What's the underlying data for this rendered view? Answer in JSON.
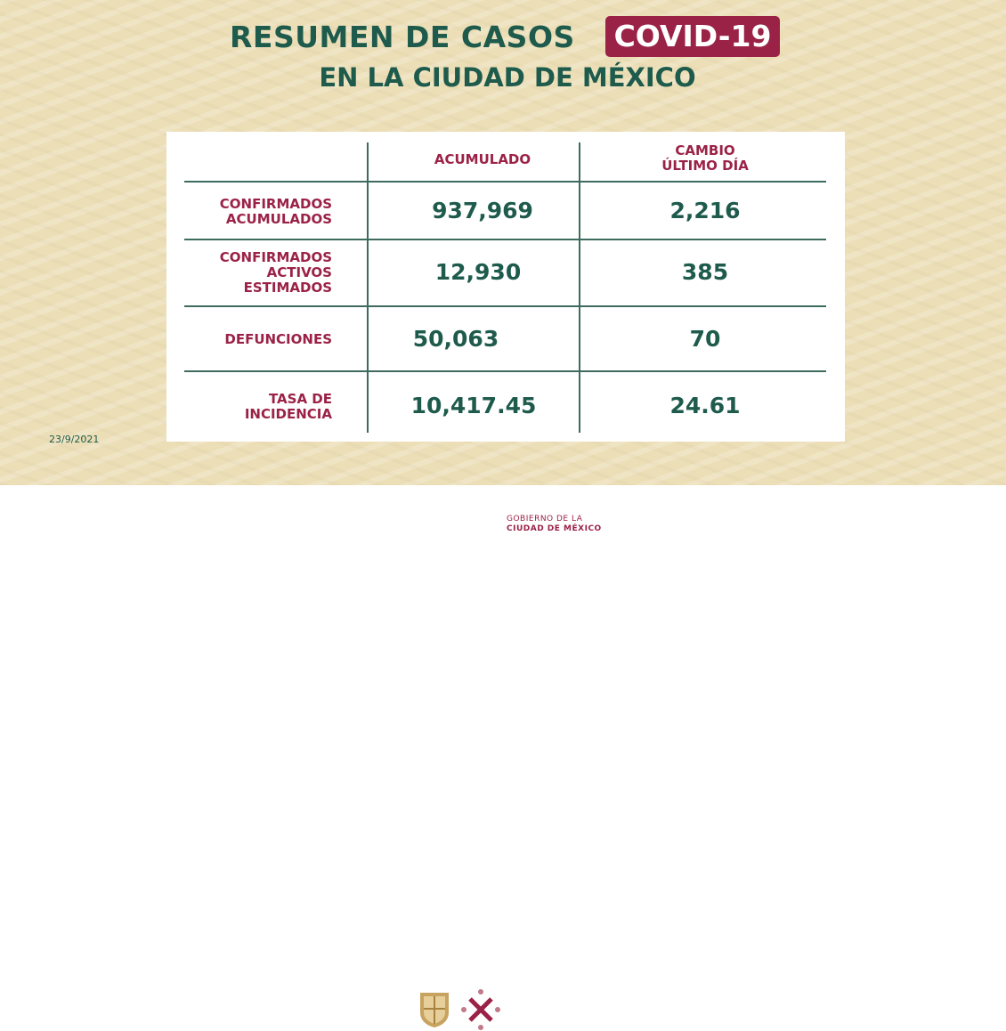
{
  "title": {
    "line1": "RESUMEN DE CASOS",
    "badge": "COVID-19",
    "line2": "EN LA CIUDAD DE MÉXICO"
  },
  "colors": {
    "green": "#1e5b4c",
    "red": "#9b2247",
    "background": "#ecdfb8"
  },
  "table": {
    "headers": [
      "ACUMULADO",
      "CAMBIO\nÚLTIMO DÍA"
    ],
    "header_cambio_1": "CAMBIO",
    "header_cambio_2": "ÚLTIMO DÍA",
    "rows": [
      {
        "label1": "CONFIRMADOS",
        "label2": "ACUMULADOS",
        "label3": "",
        "acumulado": "937,969",
        "cambio": "2,216"
      },
      {
        "label1": "CONFIRMADOS",
        "label2": "ACTIVOS",
        "label3": "ESTIMADOS",
        "acumulado": "12,930",
        "cambio": "385"
      },
      {
        "label1": "DEFUNCIONES",
        "label2": "",
        "label3": "",
        "acumulado": "50,063",
        "cambio": "70"
      },
      {
        "label1": "TASA DE",
        "label2": "INCIDENCIA",
        "label3": "",
        "acumulado": "10,417.45",
        "cambio": "24.61"
      }
    ]
  },
  "date": "23/9/2021",
  "footer": {
    "logo_text1": "GOBIERNO DE LA",
    "logo_text2": "CIUDAD DE MÉXICO"
  }
}
